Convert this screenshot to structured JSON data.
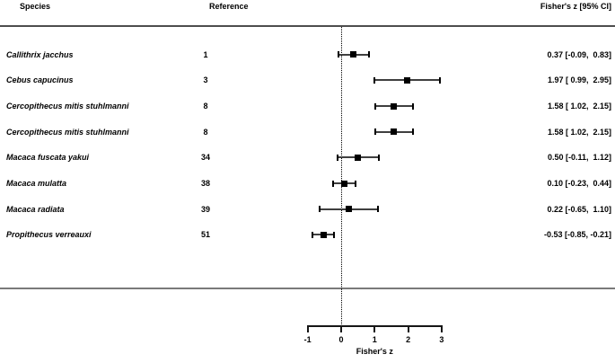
{
  "colors": {
    "background": "#ffffff",
    "text": "#000000",
    "rule_top": "#4e4e4e",
    "rule_bottom": "#7a7a7a",
    "marker": "#000000",
    "ci_line": "#3f3f3f",
    "axis": "#161616"
  },
  "columns": {
    "species": "Species",
    "reference": "Reference",
    "estimate": "Fisher's z [95% CI]"
  },
  "chart_data": {
    "type": "scatter",
    "variant": "forest-plot",
    "title": "",
    "xlabel": "Fisher's z",
    "xlim": [
      -1,
      3
    ],
    "x_ticks": [
      "-1",
      "0",
      "1",
      "2",
      "3"
    ],
    "x_tick_values": [
      -1,
      0,
      1,
      2,
      3
    ],
    "reference_line_x": 0,
    "grid": false,
    "points": [
      {
        "species": "Callithrix jacchus",
        "reference": "1",
        "z": 0.37,
        "ci_low": -0.09,
        "ci_high": 0.83,
        "label": "0.37 [-0.09,  0.83]"
      },
      {
        "species": "Cebus capucinus",
        "reference": "3",
        "z": 1.97,
        "ci_low": 0.99,
        "ci_high": 2.95,
        "label": "1.97 [ 0.99,  2.95]"
      },
      {
        "species": "Cercopithecus mitis stuhlmanni",
        "reference": "8",
        "z": 1.58,
        "ci_low": 1.02,
        "ci_high": 2.15,
        "label": "1.58 [ 1.02,  2.15]"
      },
      {
        "species": "Cercopithecus mitis stuhlmanni",
        "reference": "8",
        "z": 1.58,
        "ci_low": 1.02,
        "ci_high": 2.15,
        "label": "1.58 [ 1.02,  2.15]"
      },
      {
        "species": "Macaca fuscata yakui",
        "reference": "34",
        "z": 0.5,
        "ci_low": -0.11,
        "ci_high": 1.12,
        "label": "0.50 [-0.11,  1.12]"
      },
      {
        "species": "Macaca mulatta",
        "reference": "38",
        "z": 0.1,
        "ci_low": -0.23,
        "ci_high": 0.44,
        "label": "0.10 [-0.23,  0.44]"
      },
      {
        "species": "Macaca radiata",
        "reference": "39",
        "z": 0.22,
        "ci_low": -0.65,
        "ci_high": 1.1,
        "label": "0.22 [-0.65,  1.10]"
      },
      {
        "species": "Propithecus verreauxi",
        "reference": "51",
        "z": -0.53,
        "ci_low": -0.85,
        "ci_high": -0.21,
        "label": "-0.53 [-0.85, -0.21]"
      }
    ]
  }
}
